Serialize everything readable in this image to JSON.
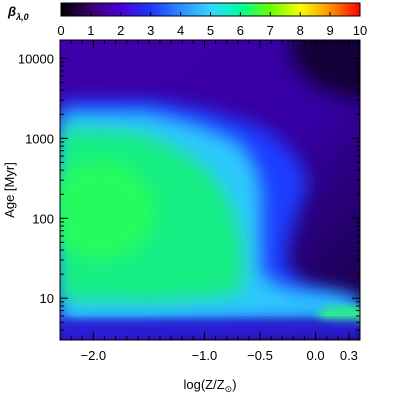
{
  "chart_data": {
    "type": "heatmap",
    "colorbar": {
      "label": "β",
      "label_sub": "λ,0",
      "range": [
        0,
        10
      ],
      "ticks": [
        "0",
        "1",
        "2",
        "3",
        "4",
        "5",
        "6",
        "7",
        "8",
        "9",
        "10"
      ],
      "colormap": [
        "#000000",
        "#3a006e",
        "#4b00d6",
        "#1b37ff",
        "#2f8cff",
        "#33d6ff",
        "#00ff9c",
        "#67ff00",
        "#f7ff00",
        "#ff9200",
        "#ff0000"
      ]
    },
    "x_axis": {
      "label_prefix": "log(Z/Z",
      "label_sub": "⊙",
      "label_suffix": ")",
      "range": [
        -2.3,
        0.4
      ],
      "ticks": [
        {
          "value": -2.0,
          "label": "−2.0"
        },
        {
          "value": -1.0,
          "label": "−1.0"
        },
        {
          "value": -0.5,
          "label": "−0.5"
        },
        {
          "value": 0.0,
          "label": "0.0"
        },
        {
          "value": 0.3,
          "label": "0.3"
        }
      ]
    },
    "y_axis": {
      "label": "Age [Myr]",
      "scale": "log",
      "range_myr": [
        3,
        17000
      ],
      "ticks": [
        {
          "value": 10,
          "label": "10"
        },
        {
          "value": 100,
          "label": "100"
        },
        {
          "value": 1000,
          "label": "1000"
        },
        {
          "value": 10000,
          "label": "10000"
        }
      ]
    }
  }
}
